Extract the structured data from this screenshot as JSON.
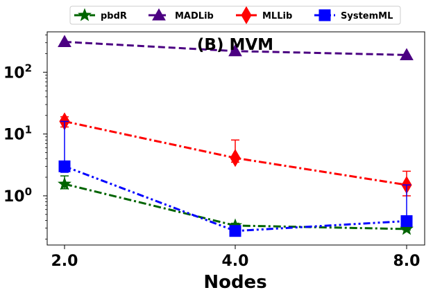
{
  "chart_data": {
    "type": "line",
    "title": "(B) MVM",
    "xlabel": "Nodes",
    "ylabel": "",
    "x": [
      2.0,
      4.0,
      8.0
    ],
    "x_tick_labels": [
      "2.0",
      "4.0",
      "8.0"
    ],
    "y_scale": "log",
    "ylim": [
      0.16,
      450
    ],
    "y_ticks": [
      {
        "value": 1,
        "base": "10",
        "exp": "0"
      },
      {
        "value": 10,
        "base": "10",
        "exp": "1"
      },
      {
        "value": 100,
        "base": "10",
        "exp": "2"
      }
    ],
    "legend_position": "top-center (outside plot)",
    "grid": false,
    "series": [
      {
        "name": "pbdR",
        "color": "#006400",
        "marker": "star",
        "linestyle": "dashdot",
        "values": [
          1.55,
          0.33,
          0.29
        ],
        "err_high": [
          2.1,
          0.36,
          0.31
        ],
        "err_low": [
          1.3,
          0.31,
          0.28
        ]
      },
      {
        "name": "MADLib",
        "color": "#4b0082",
        "marker": "triangle",
        "linestyle": "dashed",
        "values": [
          310,
          220,
          190
        ],
        "err_high": [
          null,
          null,
          null
        ],
        "err_low": [
          null,
          null,
          null
        ]
      },
      {
        "name": "MLLib",
        "color": "#ff0000",
        "marker": "thin_diamond",
        "linestyle": "dashdot",
        "values": [
          16,
          4.1,
          1.5
        ],
        "err_high": [
          19,
          8,
          2.5
        ],
        "err_low": [
          13,
          3.5,
          1.0
        ]
      },
      {
        "name": "SystemML",
        "color": "#0000ff",
        "marker": "square",
        "linestyle": "dashdotdot",
        "values": [
          3.0,
          0.27,
          0.39
        ],
        "err_high": [
          16,
          0.29,
          1.5
        ],
        "err_low": [
          2.4,
          0.25,
          0.34
        ]
      }
    ]
  }
}
